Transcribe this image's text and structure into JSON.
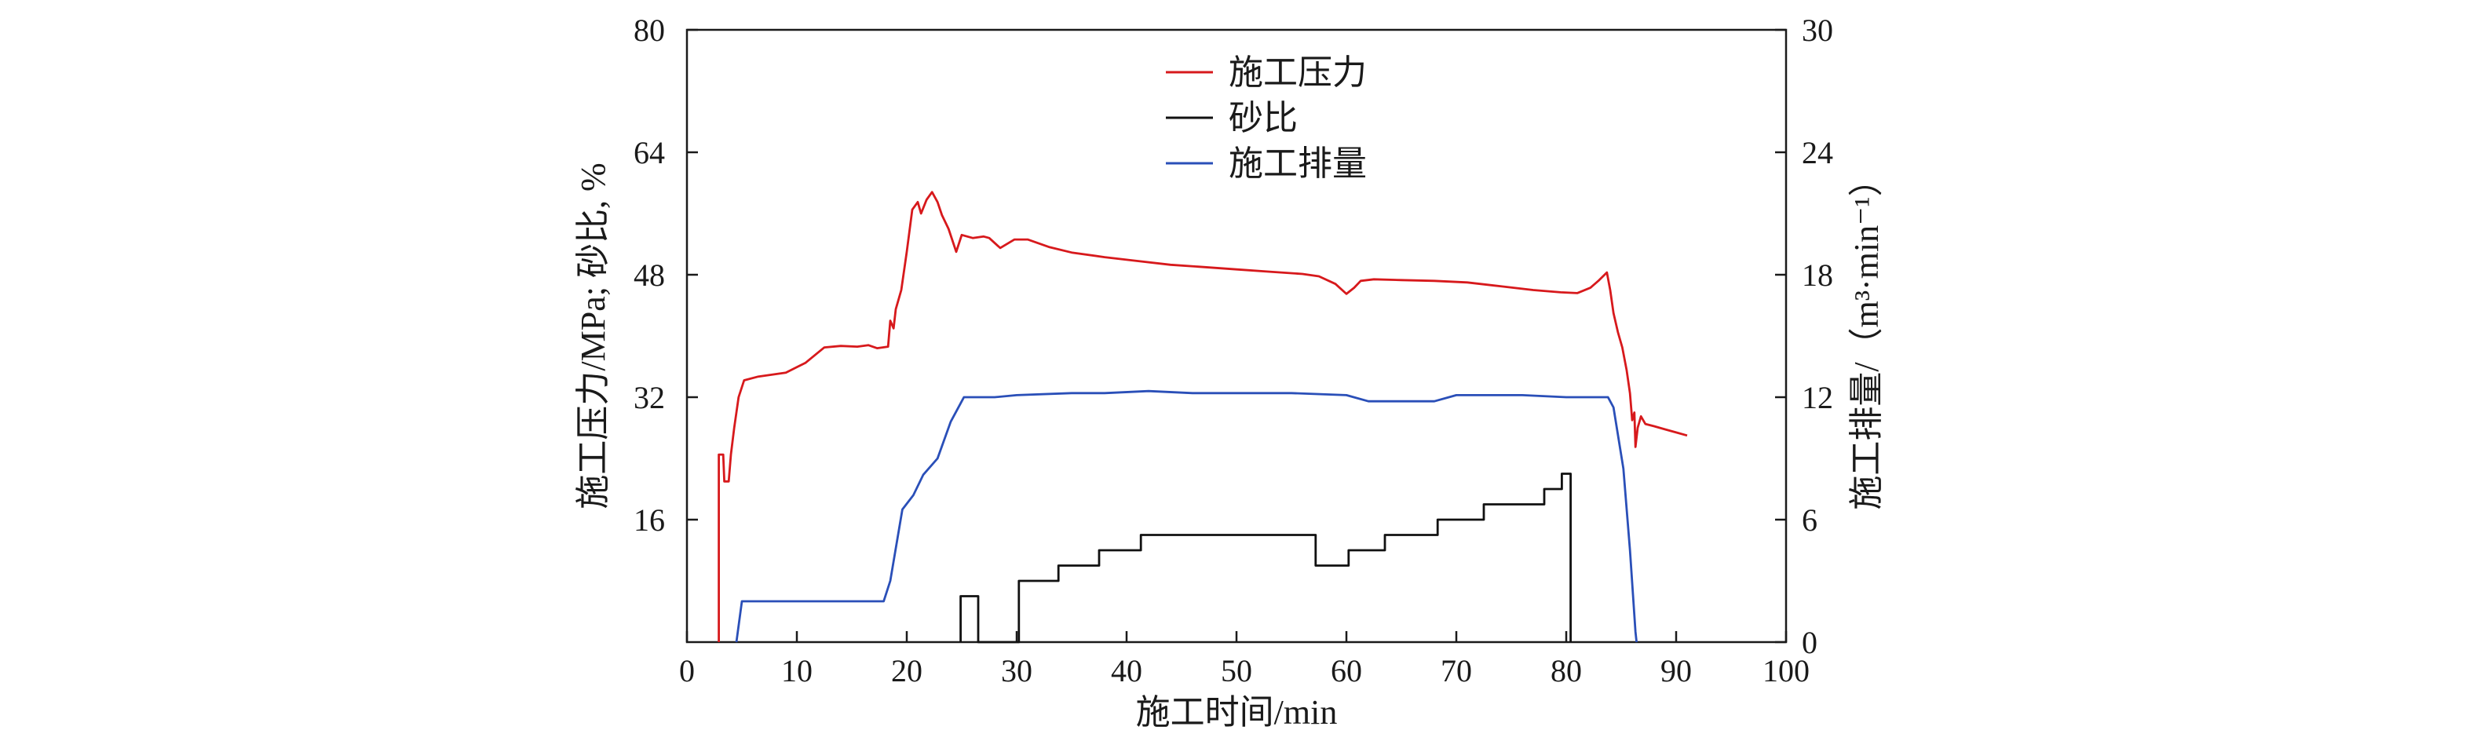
{
  "chart_data": {
    "type": "line",
    "xlabel": "施工时间/min",
    "ylabel_left": "施工压力/MPa; 砂比, %",
    "ylabel_right": "施工排量/（m³·min⁻¹）",
    "xlim": [
      0,
      100
    ],
    "ylim_left": [
      0,
      80
    ],
    "ylim_right": [
      0,
      30
    ],
    "x_ticks": [
      "0",
      "10",
      "20",
      "30",
      "40",
      "50",
      "60",
      "70",
      "80",
      "90",
      "100"
    ],
    "y_left_ticks": [
      "16",
      "32",
      "48",
      "64",
      "80"
    ],
    "y_right_ticks": [
      "0",
      "6",
      "12",
      "18",
      "24",
      "30"
    ],
    "grid": false,
    "legend_position": "top-center",
    "series": [
      {
        "name": "施工压力",
        "axis": "left",
        "color": "#d7191c",
        "points": [
          [
            2.9,
            0
          ],
          [
            2.9,
            24.5
          ],
          [
            3.3,
            24.5
          ],
          [
            3.4,
            21
          ],
          [
            3.8,
            21
          ],
          [
            4.0,
            24.5
          ],
          [
            4.3,
            28
          ],
          [
            4.7,
            32
          ],
          [
            5.2,
            34.2
          ],
          [
            6.5,
            34.7
          ],
          [
            9.0,
            35.2
          ],
          [
            10.8,
            36.5
          ],
          [
            12.5,
            38.5
          ],
          [
            14.0,
            38.7
          ],
          [
            15.5,
            38.6
          ],
          [
            16.5,
            38.8
          ],
          [
            17.3,
            38.4
          ],
          [
            18.3,
            38.6
          ],
          [
            18.5,
            42
          ],
          [
            18.8,
            41
          ],
          [
            19.0,
            43.5
          ],
          [
            19.5,
            46
          ],
          [
            20.0,
            51
          ],
          [
            20.5,
            56.5
          ],
          [
            21.0,
            57.5
          ],
          [
            21.3,
            56
          ],
          [
            21.8,
            57.8
          ],
          [
            22.3,
            58.8
          ],
          [
            22.8,
            57.5
          ],
          [
            23.2,
            55.8
          ],
          [
            23.8,
            54
          ],
          [
            24.5,
            51
          ],
          [
            25.0,
            53.2
          ],
          [
            26.0,
            52.8
          ],
          [
            27.0,
            53
          ],
          [
            27.5,
            52.8
          ],
          [
            28.5,
            51.5
          ],
          [
            29.8,
            52.6
          ],
          [
            31.0,
            52.6
          ],
          [
            33.0,
            51.6
          ],
          [
            35.0,
            50.9
          ],
          [
            38.0,
            50.3
          ],
          [
            41.0,
            49.8
          ],
          [
            44.0,
            49.3
          ],
          [
            47.0,
            49.0
          ],
          [
            50.0,
            48.7
          ],
          [
            53.0,
            48.4
          ],
          [
            56.0,
            48.1
          ],
          [
            57.5,
            47.8
          ],
          [
            59.0,
            46.8
          ],
          [
            60.0,
            45.5
          ],
          [
            60.7,
            46.3
          ],
          [
            61.3,
            47.2
          ],
          [
            62.5,
            47.4
          ],
          [
            65.0,
            47.3
          ],
          [
            68.0,
            47.2
          ],
          [
            71.0,
            47.0
          ],
          [
            74.0,
            46.5
          ],
          [
            77.0,
            46.0
          ],
          [
            79.5,
            45.7
          ],
          [
            81.0,
            45.6
          ],
          [
            82.2,
            46.3
          ],
          [
            83.0,
            47.3
          ],
          [
            83.7,
            48.3
          ],
          [
            84.0,
            46
          ],
          [
            84.3,
            43
          ],
          [
            84.7,
            40.5
          ],
          [
            85.1,
            38.5
          ],
          [
            85.5,
            35.5
          ],
          [
            85.8,
            32.5
          ],
          [
            86.0,
            29
          ],
          [
            86.2,
            30
          ],
          [
            86.3,
            25.5
          ],
          [
            86.5,
            28
          ],
          [
            86.8,
            29.5
          ],
          [
            87.2,
            28.5
          ],
          [
            88.0,
            28.2
          ],
          [
            89.0,
            27.8
          ],
          [
            90.0,
            27.4
          ],
          [
            91.0,
            27
          ]
        ]
      },
      {
        "name": "砂比",
        "axis": "left",
        "color": "#111111",
        "points": [
          [
            24.9,
            0
          ],
          [
            24.9,
            6
          ],
          [
            26.5,
            6
          ],
          [
            26.5,
            0
          ],
          [
            30.2,
            0
          ],
          [
            30.2,
            8
          ],
          [
            33.8,
            8
          ],
          [
            33.8,
            10
          ],
          [
            37.5,
            10
          ],
          [
            37.5,
            12
          ],
          [
            41.3,
            12
          ],
          [
            41.3,
            14
          ],
          [
            57.2,
            14
          ],
          [
            57.2,
            10
          ],
          [
            60.2,
            10
          ],
          [
            60.2,
            12
          ],
          [
            63.5,
            12
          ],
          [
            63.5,
            14
          ],
          [
            68.3,
            14
          ],
          [
            68.3,
            16
          ],
          [
            72.5,
            16
          ],
          [
            72.5,
            18
          ],
          [
            78.0,
            18
          ],
          [
            78.0,
            20
          ],
          [
            79.6,
            20
          ],
          [
            79.6,
            22
          ],
          [
            80.4,
            22
          ],
          [
            80.4,
            0
          ]
        ]
      },
      {
        "name": "施工排量",
        "axis": "right",
        "color": "#2a4fb8",
        "points": [
          [
            4.5,
            0
          ],
          [
            5.0,
            2.0
          ],
          [
            10.0,
            2.0
          ],
          [
            15.0,
            2.0
          ],
          [
            17.9,
            2.0
          ],
          [
            18.5,
            3.0
          ],
          [
            19.6,
            6.5
          ],
          [
            20.6,
            7.2
          ],
          [
            21.5,
            8.2
          ],
          [
            22.8,
            9.0
          ],
          [
            24.0,
            10.8
          ],
          [
            25.2,
            12.0
          ],
          [
            28.0,
            12.0
          ],
          [
            30.0,
            12.1
          ],
          [
            35.0,
            12.2
          ],
          [
            38.0,
            12.2
          ],
          [
            42.0,
            12.3
          ],
          [
            46.0,
            12.2
          ],
          [
            50.0,
            12.2
          ],
          [
            55.0,
            12.2
          ],
          [
            60.0,
            12.1
          ],
          [
            62.0,
            11.8
          ],
          [
            68.0,
            11.8
          ],
          [
            70.0,
            12.1
          ],
          [
            76.0,
            12.1
          ],
          [
            80.0,
            12.0
          ],
          [
            83.8,
            12.0
          ],
          [
            84.3,
            11.5
          ],
          [
            85.2,
            8.5
          ],
          [
            85.8,
            4.5
          ],
          [
            86.3,
            0.5
          ],
          [
            86.4,
            0
          ]
        ]
      }
    ]
  }
}
